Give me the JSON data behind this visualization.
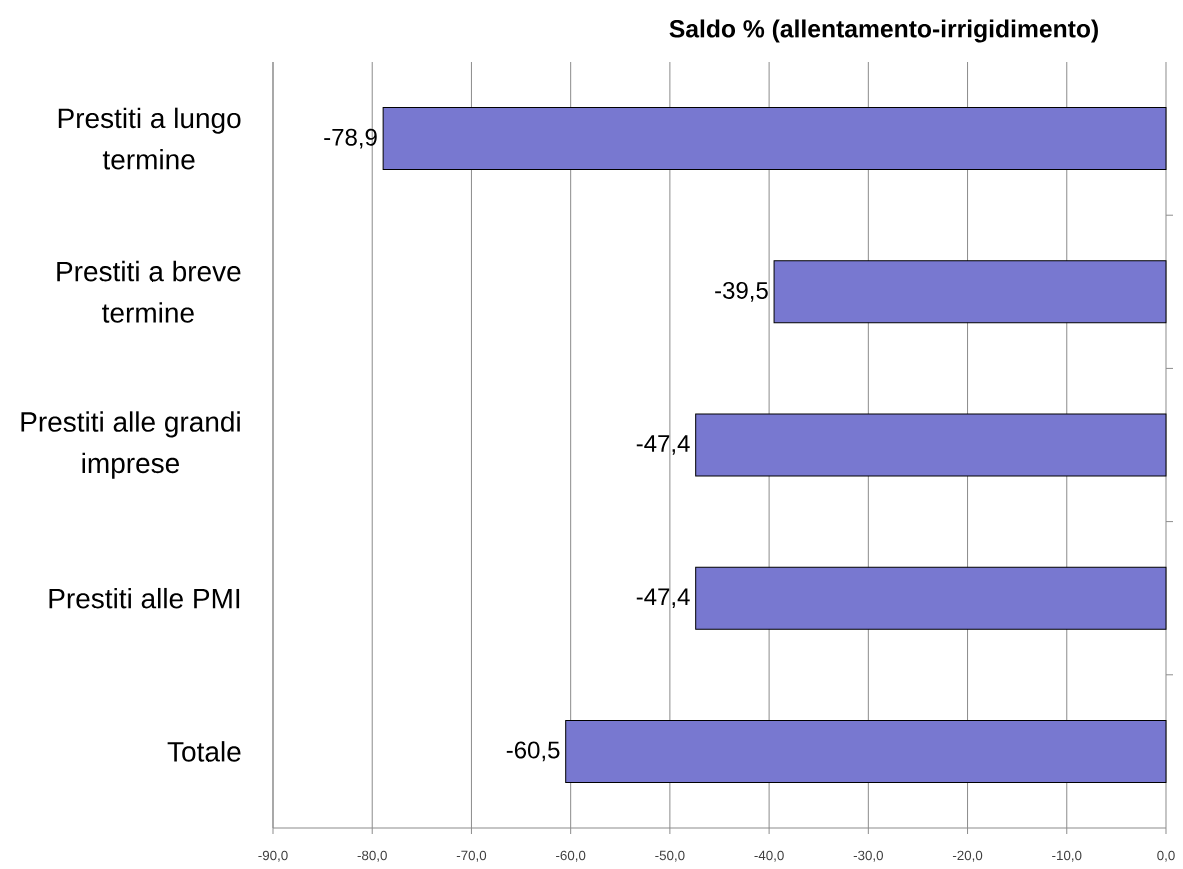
{
  "chart_data": {
    "type": "bar",
    "orientation": "horizontal",
    "title": "Saldo % (allentamento-irrigidimento)",
    "categories": [
      "Prestiti a lungo termine",
      "Prestiti a breve termine",
      "Prestiti alle grandi imprese",
      "Prestiti alle PMI",
      "Totale"
    ],
    "values": [
      -78.9,
      -39.5,
      -47.4,
      -47.4,
      -60.5
    ],
    "value_labels": [
      "-78,9",
      "-39,5",
      "-47,4",
      "-47,4",
      "-60,5"
    ],
    "color": "#7878d0",
    "xlim": [
      -90,
      0
    ],
    "xticks": [
      {
        "value": -90,
        "label": "-90,0"
      },
      {
        "value": -80,
        "label": "-80,0"
      },
      {
        "value": -70,
        "label": "-70,0"
      },
      {
        "value": -60,
        "label": "-60,0"
      },
      {
        "value": -50,
        "label": "-50,0"
      },
      {
        "value": -40,
        "label": "-40,0"
      },
      {
        "value": -30,
        "label": "-30,0"
      },
      {
        "value": -20,
        "label": "-20,0"
      },
      {
        "value": -10,
        "label": "-10,0"
      },
      {
        "value": 0,
        "label": "0,0"
      }
    ],
    "grid": "x"
  }
}
